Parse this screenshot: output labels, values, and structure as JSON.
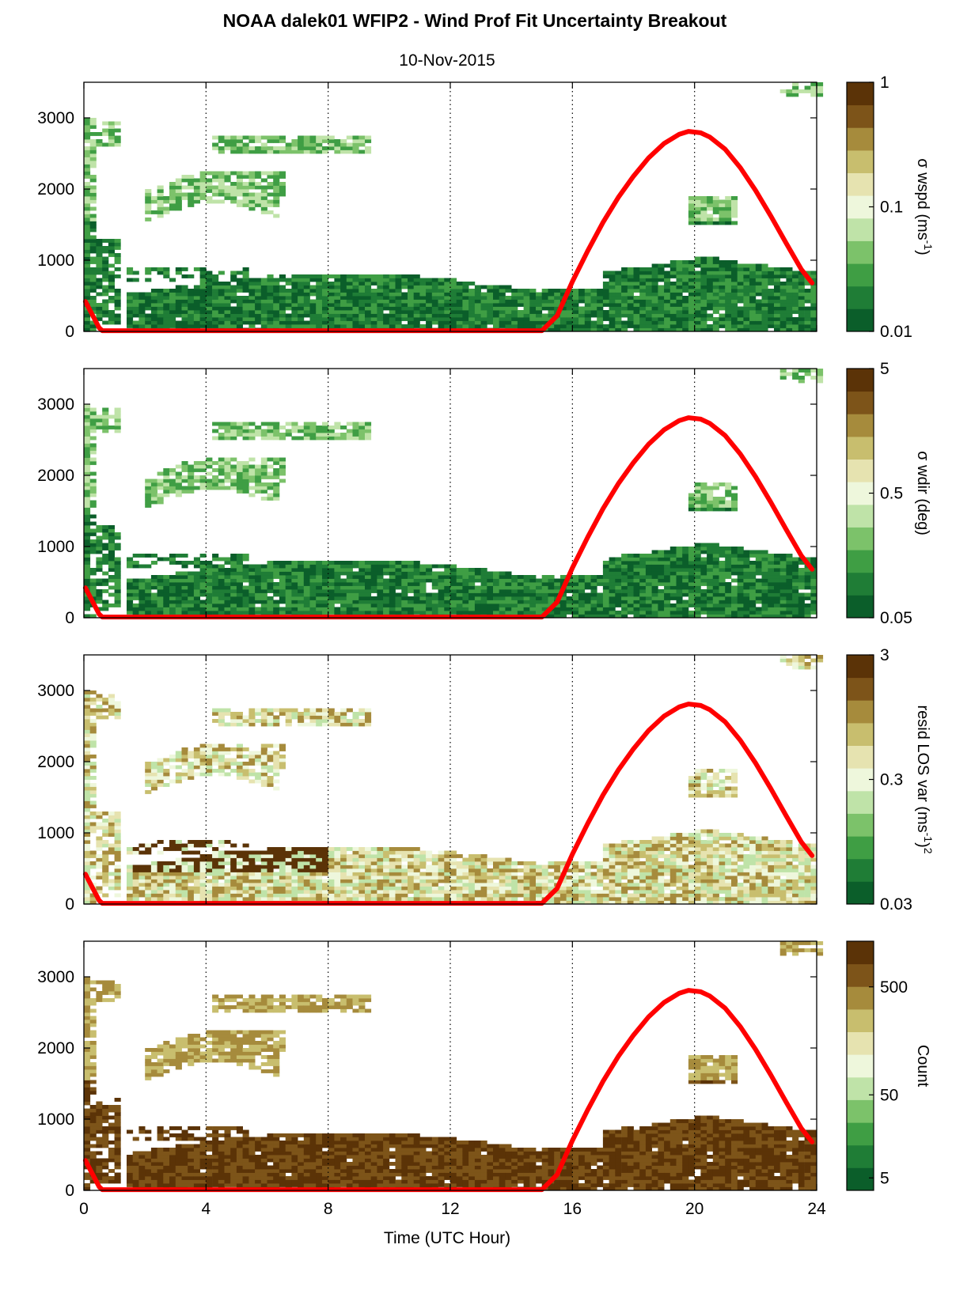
{
  "figure": {
    "title": "NOAA dalek01 WFIP2 - Wind Prof Fit Uncertainty Breakout",
    "subtitle": "10-Nov-2015",
    "xlabel": "Time (UTC Hour)"
  },
  "colors": {
    "cmap": [
      "#0b5e2a",
      "#1f7d36",
      "#3f9e44",
      "#7cc26a",
      "#bfe3a8",
      "#eef7dc",
      "#e6e3b0",
      "#c8be6e",
      "#a68b3c",
      "#7d5419",
      "#5b3307"
    ],
    "solar": "#ff0000",
    "frame": "#000000"
  },
  "chart_data": [
    {
      "type": "heatmap",
      "name": "sigma-wspd",
      "x": {
        "ticks": [
          0,
          4,
          8,
          12,
          16,
          20,
          24
        ],
        "labels": [
          "0",
          "4",
          "8",
          "12",
          "16",
          "20",
          "24"
        ],
        "range": [
          0,
          24
        ]
      },
      "y": {
        "ticks": [
          0,
          1000,
          2000,
          3000
        ],
        "labels": [
          "0",
          "1000",
          "2000",
          "3000"
        ],
        "range": [
          0,
          3500
        ]
      },
      "colorbar": {
        "label": "σ wspd (ms-1)",
        "label_base": "σ wspd (ms",
        "label_sup": "-1",
        "label_tail": ")",
        "scale": "log",
        "ticks": [
          0.01,
          0.1,
          1
        ],
        "labels": [
          "0.01",
          "0.1",
          "1"
        ]
      },
      "dominant": "low",
      "grid": "dotted vertical at x ticks"
    },
    {
      "type": "heatmap",
      "name": "sigma-wdir",
      "x": {
        "ticks": [
          0,
          4,
          8,
          12,
          16,
          20,
          24
        ],
        "labels": [
          "0",
          "4",
          "8",
          "12",
          "16",
          "20",
          "24"
        ],
        "range": [
          0,
          24
        ]
      },
      "y": {
        "ticks": [
          0,
          1000,
          2000,
          3000
        ],
        "labels": [
          "0",
          "1000",
          "2000",
          "3000"
        ],
        "range": [
          0,
          3500
        ]
      },
      "colorbar": {
        "label": "σ wdir (deg)",
        "scale": "log",
        "ticks": [
          0.05,
          0.5,
          5
        ],
        "labels": [
          "0.05",
          "0.5",
          "5"
        ]
      },
      "dominant": "low",
      "grid": "dotted vertical at x ticks"
    },
    {
      "type": "heatmap",
      "name": "resid-los-var",
      "x": {
        "ticks": [
          0,
          4,
          8,
          12,
          16,
          20,
          24
        ],
        "labels": [
          "0",
          "4",
          "8",
          "12",
          "16",
          "20",
          "24"
        ],
        "range": [
          0,
          24
        ]
      },
      "y": {
        "ticks": [
          0,
          1000,
          2000,
          3000
        ],
        "labels": [
          "0",
          "1000",
          "2000",
          "3000"
        ],
        "range": [
          0,
          3500
        ]
      },
      "colorbar": {
        "label": "resid LOS var (ms-1)2",
        "label_base": "resid LOS var (ms",
        "label_sup": "-1",
        "label_tail": ")",
        "label_sup2": "2",
        "scale": "log",
        "ticks": [
          0.03,
          0.3,
          3
        ],
        "labels": [
          "0.03",
          "0.3",
          "3"
        ]
      },
      "dominant": "mixed",
      "grid": "dotted vertical at x ticks"
    },
    {
      "type": "heatmap",
      "name": "count",
      "x": {
        "ticks": [
          0,
          4,
          8,
          12,
          16,
          20,
          24
        ],
        "labels": [
          "0",
          "4",
          "8",
          "12",
          "16",
          "20",
          "24"
        ],
        "range": [
          0,
          24
        ]
      },
      "y": {
        "ticks": [
          0,
          1000,
          2000,
          3000
        ],
        "labels": [
          "0",
          "1000",
          "2000",
          "3000"
        ],
        "range": [
          0,
          3500
        ]
      },
      "colorbar": {
        "label": "Count",
        "scale": "log",
        "ticks": [
          5,
          50,
          500
        ],
        "labels": [
          "5",
          "50",
          "500"
        ]
      },
      "dominant": "high",
      "grid": "dotted vertical at x ticks"
    }
  ],
  "solar_curve": {
    "description": "red overlay line repeated in every panel",
    "x": [
      0.05,
      0.5,
      0.6,
      15.0,
      15.5,
      16,
      16.5,
      17,
      17.5,
      18,
      18.5,
      19,
      19.5,
      19.8,
      20.2,
      20.5,
      21,
      21.5,
      22,
      22.5,
      23,
      23.5,
      23.85
    ],
    "y": [
      420,
      50,
      10,
      10,
      220,
      700,
      1130,
      1530,
      1880,
      2180,
      2440,
      2640,
      2770,
      2810,
      2790,
      2730,
      2560,
      2300,
      1980,
      1620,
      1240,
      870,
      680
    ]
  }
}
